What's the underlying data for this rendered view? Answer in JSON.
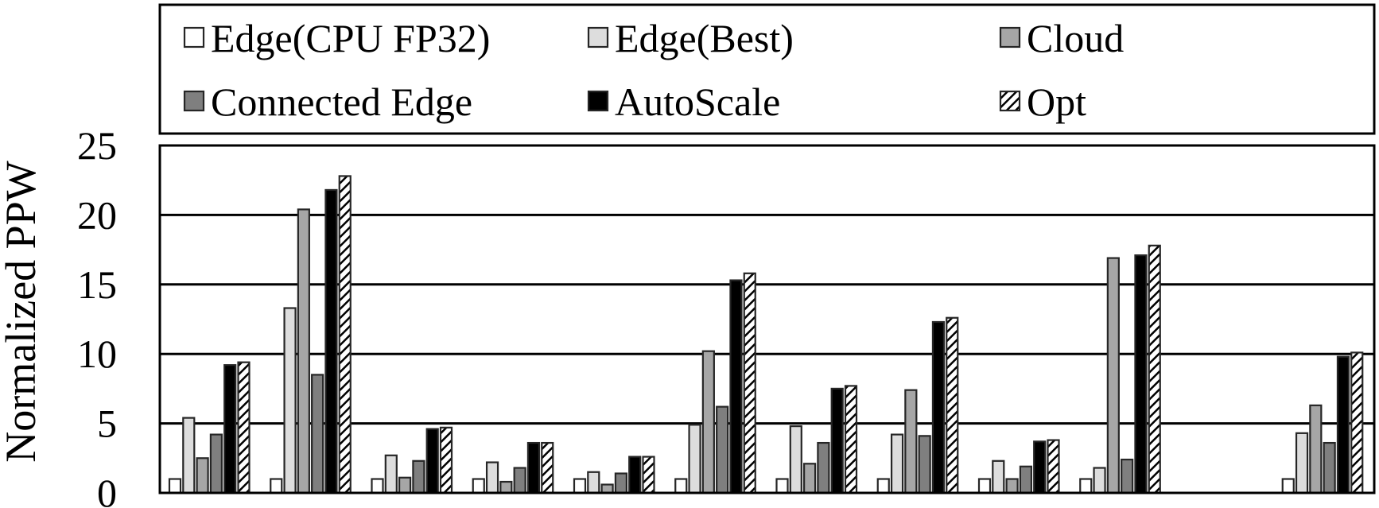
{
  "chart_data": {
    "type": "bar",
    "title": "",
    "xlabel": "",
    "ylabel": "Normalized PPW",
    "ylim": [
      0,
      25
    ],
    "yticks": [
      "0",
      "5",
      "10",
      "15",
      "20",
      "25"
    ],
    "grid": true,
    "legend_position": "top",
    "categories": [
      "",
      "",
      "",
      "",
      "",
      "",
      "",
      "",
      "",
      "",
      "",
      ""
    ],
    "series": [
      {
        "name": "Edge(CPU FP32)",
        "color": "#ffffff",
        "pattern": "none",
        "values": [
          1,
          1,
          1,
          1,
          1,
          1,
          1,
          1,
          1,
          1,
          null,
          1
        ]
      },
      {
        "name": "Edge(Best)",
        "color": "#dddddd",
        "pattern": "none",
        "values": [
          5.4,
          13.3,
          2.7,
          2.2,
          1.5,
          4.9,
          4.8,
          4.2,
          2.3,
          1.8,
          null,
          4.3
        ]
      },
      {
        "name": "Cloud",
        "color": "#a6a6a6",
        "pattern": "none",
        "values": [
          2.5,
          20.4,
          1.1,
          0.8,
          0.6,
          10.2,
          2.1,
          7.4,
          1.0,
          16.9,
          null,
          6.3
        ]
      },
      {
        "name": "Connected Edge",
        "color": "#7f7f7f",
        "pattern": "none",
        "values": [
          4.2,
          8.5,
          2.3,
          1.8,
          1.4,
          6.2,
          3.6,
          4.1,
          1.9,
          2.4,
          null,
          3.6
        ]
      },
      {
        "name": "AutoScale",
        "color": "#000000",
        "pattern": "none",
        "values": [
          9.2,
          21.8,
          4.6,
          3.6,
          2.6,
          15.3,
          7.5,
          12.3,
          3.7,
          17.1,
          null,
          9.8
        ]
      },
      {
        "name": "Opt",
        "color": "#ffffff",
        "pattern": "diagonal",
        "values": [
          9.4,
          22.8,
          4.7,
          3.6,
          2.6,
          15.8,
          7.7,
          12.6,
          3.8,
          17.8,
          null,
          10.1
        ]
      }
    ]
  }
}
